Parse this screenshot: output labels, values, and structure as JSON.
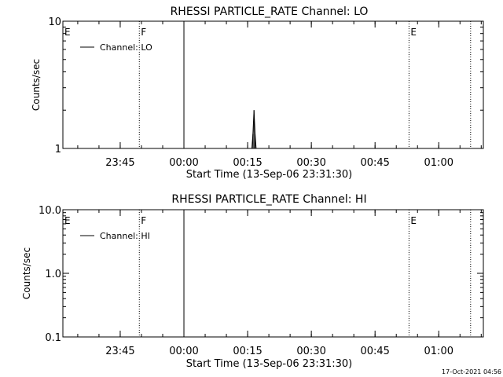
{
  "footer": {
    "timestamp": "17-Oct-2021 04:56"
  },
  "chart_data": [
    {
      "type": "line",
      "title": "RHESSI PARTICLE_RATE Channel: LO",
      "xlabel": "Start Time (13-Sep-06 23:31:30)",
      "ylabel": "Counts/sec",
      "y_scale": "log",
      "ylim": [
        1,
        10
      ],
      "y_ticks": [
        1,
        10
      ],
      "y_tick_labels": [
        "1",
        "10"
      ],
      "xlim": [
        "23:31:30",
        "01:10:30"
      ],
      "x_ticks": [
        "23:45",
        "00:00",
        "00:15",
        "00:30",
        "00:45",
        "01:00"
      ],
      "legend": {
        "placement": "top-left",
        "entries": [
          "Channel: LO"
        ]
      },
      "series": [
        {
          "name": "Channel: LO",
          "x": [
            "23:54:30",
            "00:00",
            "00:16:00",
            "00:16:15",
            "00:16:30",
            "00:16:45",
            "00:17:00"
          ],
          "values": [
            10,
            10,
            1,
            1.3,
            2.0,
            1.3,
            1
          ]
        }
      ],
      "markers": [
        {
          "label": "E",
          "time": "23:31:30",
          "style": "dotted"
        },
        {
          "label": "F",
          "time": "23:49:30",
          "style": "dotted"
        },
        {
          "label": "E",
          "time": "00:53:00",
          "style": "dotted"
        },
        {
          "label": "",
          "time": "01:07:30",
          "style": "dotted"
        }
      ],
      "grid": false
    },
    {
      "type": "line",
      "title": "RHESSI PARTICLE_RATE Channel: HI",
      "xlabel": "Start Time (13-Sep-06 23:31:30)",
      "ylabel": "Counts/sec",
      "y_scale": "log",
      "ylim": [
        0.1,
        10
      ],
      "y_ticks": [
        0.1,
        1,
        10
      ],
      "y_tick_labels": [
        "0.1",
        "1.0",
        "10.0"
      ],
      "xlim": [
        "23:31:30",
        "01:10:30"
      ],
      "x_ticks": [
        "23:45",
        "00:00",
        "00:15",
        "00:30",
        "00:45",
        "01:00"
      ],
      "legend": {
        "placement": "top-left",
        "entries": [
          "Channel: HI"
        ]
      },
      "series": [
        {
          "name": "Channel: HI",
          "x": [
            "23:54:30",
            "00:00"
          ],
          "values": [
            10,
            10
          ]
        }
      ],
      "markers": [
        {
          "label": "E",
          "time": "23:31:30",
          "style": "dotted"
        },
        {
          "label": "F",
          "time": "23:49:30",
          "style": "dotted"
        },
        {
          "label": "E",
          "time": "00:53:00",
          "style": "dotted"
        },
        {
          "label": "",
          "time": "01:07:30",
          "style": "dotted"
        }
      ],
      "grid": false
    }
  ]
}
